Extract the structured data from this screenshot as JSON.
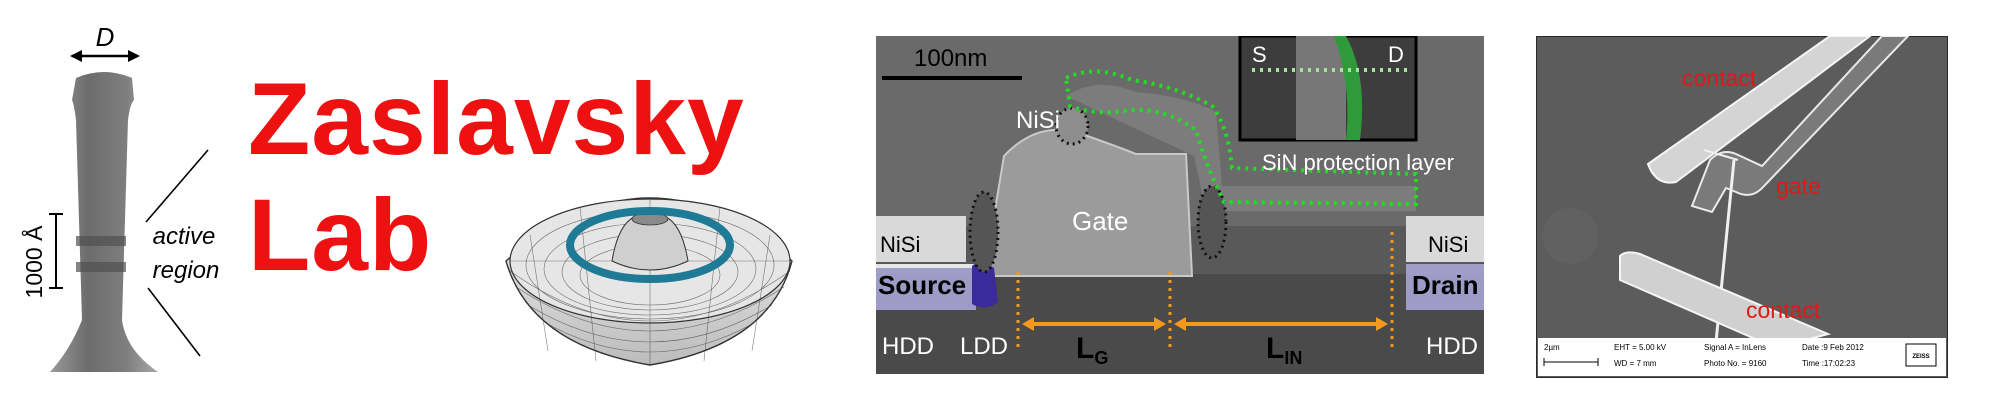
{
  "lab_title": {
    "line1": "Zaslavsky",
    "line2": "Lab",
    "color": "#ee1111"
  },
  "nanowire_figure": {
    "diameter_label": "D",
    "scale_label": "1000 Å",
    "region_label_1": "active",
    "region_label_2": "region"
  },
  "surface_plot": {
    "ring_color": "#1f7a96",
    "mesh_color": "#d8d8d8"
  },
  "transistor_micrograph": {
    "scale_bar": "100nm",
    "inset_source": "S",
    "inset_drain": "D",
    "nisi_top": "NiSi",
    "nisi_left": "NiSi",
    "nisi_right": "NiSi",
    "gate": "Gate",
    "sin_layer": "SiN protection layer",
    "source": "Source",
    "drain": "Drain",
    "hdd_left": "HDD",
    "ldd": "LDD",
    "lg_main": "L",
    "lg_sub": "G",
    "lin_main": "L",
    "lin_sub": "IN",
    "hdd_right": "HDD",
    "green_dots_color": "#22dd22",
    "orange_color": "#f39a1e"
  },
  "sem_image": {
    "contact_top": "contact",
    "gate": "gate",
    "contact_bottom": "contact",
    "scale": "2µm",
    "eht": "EHT =  5.00 kV",
    "wd": "WD =    7 mm",
    "signal": "Signal A = InLens",
    "photo": "Photo No. = 9160",
    "date": "Date :9 Feb 2012",
    "time": "Time :17:02:23",
    "brand": "ZEISS",
    "label_color": "#e01818"
  }
}
